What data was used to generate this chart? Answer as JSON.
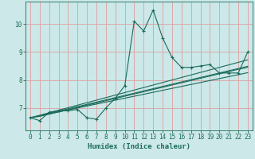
{
  "xlabel": "Humidex (Indice chaleur)",
  "xlim": [
    -0.5,
    23.5
  ],
  "ylim": [
    6.2,
    10.8
  ],
  "xticks": [
    0,
    1,
    2,
    3,
    4,
    5,
    6,
    7,
    8,
    9,
    10,
    11,
    12,
    13,
    14,
    15,
    16,
    17,
    18,
    19,
    20,
    21,
    22,
    23
  ],
  "yticks": [
    7,
    8,
    9,
    10
  ],
  "bg_color": "#cce8e8",
  "grid_color": "#dda0a0",
  "line_color": "#1a6b5a",
  "wavy_line": [
    6.65,
    6.55,
    6.85,
    6.9,
    6.9,
    6.95,
    6.65,
    6.6,
    7.0,
    7.35,
    7.8,
    10.1,
    9.75,
    10.5,
    9.5,
    8.8,
    8.45,
    8.45,
    8.5,
    8.55,
    8.25,
    8.25,
    8.25,
    9.0
  ],
  "straight_lines": [
    [
      6.65,
      6.7,
      6.78,
      6.86,
      6.94,
      7.02,
      7.1,
      7.18,
      7.26,
      7.34,
      7.42,
      7.5,
      7.58,
      7.66,
      7.74,
      7.82,
      7.9,
      7.98,
      8.06,
      8.14,
      8.22,
      8.3,
      8.38,
      8.45
    ],
    [
      6.65,
      6.72,
      6.79,
      6.86,
      6.93,
      7.0,
      7.07,
      7.14,
      7.21,
      7.28,
      7.35,
      7.42,
      7.49,
      7.56,
      7.63,
      7.7,
      7.77,
      7.84,
      7.91,
      7.98,
      8.05,
      8.12,
      8.19,
      8.26
    ],
    [
      6.65,
      6.73,
      6.81,
      6.89,
      6.97,
      7.05,
      7.13,
      7.21,
      7.29,
      7.37,
      7.45,
      7.53,
      7.61,
      7.69,
      7.77,
      7.85,
      7.93,
      8.01,
      8.09,
      8.17,
      8.25,
      8.33,
      8.41,
      8.49
    ],
    [
      6.65,
      6.74,
      6.83,
      6.92,
      7.01,
      7.1,
      7.19,
      7.28,
      7.37,
      7.46,
      7.55,
      7.64,
      7.73,
      7.82,
      7.91,
      8.0,
      8.09,
      8.18,
      8.27,
      8.36,
      8.45,
      8.54,
      8.63,
      8.72
    ]
  ]
}
